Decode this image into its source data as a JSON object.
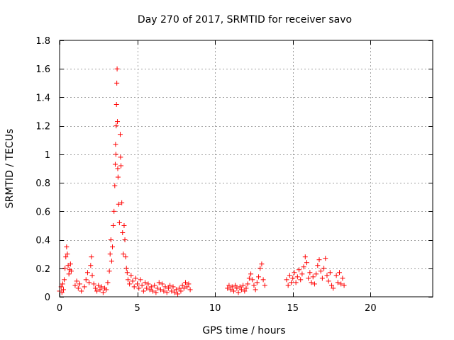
{
  "chart_data": {
    "type": "scatter",
    "title": "Day 270 of 2017, SRMTID for receiver savo",
    "xlabel": "GPS time / hours",
    "ylabel": "SRMTID / TECUs",
    "xlim": [
      0,
      24
    ],
    "ylim": [
      0,
      1.8
    ],
    "xticks": [
      0,
      5,
      10,
      15,
      20
    ],
    "yticks": [
      0,
      0.2,
      0.4,
      0.6,
      0.8,
      1,
      1.2,
      1.4,
      1.6,
      1.8
    ],
    "xtick_labels": [
      "0",
      "5",
      "10",
      "15",
      "20"
    ],
    "ytick_labels": [
      "0",
      "0.2",
      "0.4",
      "0.6",
      "0.8",
      "1",
      "1.2",
      "1.4",
      "1.6",
      "1.8"
    ],
    "grid": true,
    "marker": "plus",
    "color": "#ff0000",
    "series": [
      {
        "name": "SRMTID",
        "points": [
          [
            0.0,
            0.04
          ],
          [
            0.1,
            0.07
          ],
          [
            0.15,
            0.03
          ],
          [
            0.2,
            0.09
          ],
          [
            0.25,
            0.05
          ],
          [
            0.3,
            0.12
          ],
          [
            0.35,
            0.2
          ],
          [
            0.4,
            0.28
          ],
          [
            0.45,
            0.35
          ],
          [
            0.5,
            0.3
          ],
          [
            0.55,
            0.22
          ],
          [
            0.6,
            0.16
          ],
          [
            0.65,
            0.19
          ],
          [
            0.7,
            0.23
          ],
          [
            0.75,
            0.18
          ],
          [
            1.0,
            0.08
          ],
          [
            1.1,
            0.11
          ],
          [
            1.2,
            0.06
          ],
          [
            1.3,
            0.09
          ],
          [
            1.4,
            0.04
          ],
          [
            1.6,
            0.07
          ],
          [
            1.7,
            0.12
          ],
          [
            1.8,
            0.17
          ],
          [
            1.9,
            0.1
          ],
          [
            2.0,
            0.22
          ],
          [
            2.05,
            0.28
          ],
          [
            2.1,
            0.15
          ],
          [
            2.2,
            0.09
          ],
          [
            2.3,
            0.06
          ],
          [
            2.4,
            0.04
          ],
          [
            2.5,
            0.08
          ],
          [
            2.6,
            0.05
          ],
          [
            2.7,
            0.07
          ],
          [
            2.8,
            0.03
          ],
          [
            2.9,
            0.06
          ],
          [
            3.0,
            0.05
          ],
          [
            3.1,
            0.1
          ],
          [
            3.2,
            0.18
          ],
          [
            3.25,
            0.3
          ],
          [
            3.3,
            0.4
          ],
          [
            3.35,
            0.25
          ],
          [
            3.4,
            0.35
          ],
          [
            3.45,
            0.5
          ],
          [
            3.5,
            0.6
          ],
          [
            3.55,
            0.78
          ],
          [
            3.58,
            0.93
          ],
          [
            3.6,
            1.07
          ],
          [
            3.62,
            1.0
          ],
          [
            3.64,
            1.2
          ],
          [
            3.66,
            1.35
          ],
          [
            3.68,
            1.5
          ],
          [
            3.7,
            1.6
          ],
          [
            3.72,
            1.23
          ],
          [
            3.74,
            0.9
          ],
          [
            3.76,
            0.84
          ],
          [
            3.8,
            0.65
          ],
          [
            3.85,
            0.52
          ],
          [
            3.9,
            1.14
          ],
          [
            3.92,
            0.98
          ],
          [
            3.95,
            0.92
          ],
          [
            4.0,
            0.66
          ],
          [
            4.05,
            0.45
          ],
          [
            4.1,
            0.3
          ],
          [
            4.15,
            0.5
          ],
          [
            4.2,
            0.4
          ],
          [
            4.25,
            0.28
          ],
          [
            4.3,
            0.2
          ],
          [
            4.35,
            0.17
          ],
          [
            4.4,
            0.12
          ],
          [
            4.5,
            0.09
          ],
          [
            4.6,
            0.15
          ],
          [
            4.7,
            0.11
          ],
          [
            4.8,
            0.07
          ],
          [
            4.9,
            0.13
          ],
          [
            5.0,
            0.09
          ],
          [
            5.1,
            0.06
          ],
          [
            5.2,
            0.12
          ],
          [
            5.3,
            0.08
          ],
          [
            5.4,
            0.04
          ],
          [
            5.5,
            0.1
          ],
          [
            5.6,
            0.06
          ],
          [
            5.7,
            0.09
          ],
          [
            5.8,
            0.05
          ],
          [
            5.9,
            0.07
          ],
          [
            6.0,
            0.04
          ],
          [
            6.1,
            0.08
          ],
          [
            6.2,
            0.03
          ],
          [
            6.3,
            0.06
          ],
          [
            6.4,
            0.1
          ],
          [
            6.5,
            0.05
          ],
          [
            6.6,
            0.09
          ],
          [
            6.7,
            0.04
          ],
          [
            6.8,
            0.07
          ],
          [
            6.9,
            0.03
          ],
          [
            7.0,
            0.06
          ],
          [
            7.1,
            0.08
          ],
          [
            7.2,
            0.04
          ],
          [
            7.3,
            0.07
          ],
          [
            7.4,
            0.03
          ],
          [
            7.5,
            0.05
          ],
          [
            7.6,
            0.02
          ],
          [
            7.7,
            0.06
          ],
          [
            7.8,
            0.04
          ],
          [
            7.9,
            0.08
          ],
          [
            8.0,
            0.06
          ],
          [
            8.1,
            0.1
          ],
          [
            8.2,
            0.07
          ],
          [
            8.3,
            0.09
          ],
          [
            8.4,
            0.05
          ],
          [
            10.8,
            0.06
          ],
          [
            10.9,
            0.08
          ],
          [
            11.0,
            0.05
          ],
          [
            11.1,
            0.07
          ],
          [
            11.2,
            0.04
          ],
          [
            11.3,
            0.08
          ],
          [
            11.4,
            0.06
          ],
          [
            11.5,
            0.03
          ],
          [
            11.6,
            0.07
          ],
          [
            11.7,
            0.05
          ],
          [
            11.8,
            0.08
          ],
          [
            11.9,
            0.04
          ],
          [
            12.0,
            0.06
          ],
          [
            12.1,
            0.09
          ],
          [
            12.2,
            0.13
          ],
          [
            12.3,
            0.16
          ],
          [
            12.4,
            0.12
          ],
          [
            12.5,
            0.08
          ],
          [
            12.6,
            0.05
          ],
          [
            12.7,
            0.1
          ],
          [
            12.8,
            0.14
          ],
          [
            12.9,
            0.2
          ],
          [
            13.0,
            0.23
          ],
          [
            13.1,
            0.12
          ],
          [
            13.2,
            0.08
          ],
          [
            14.6,
            0.12
          ],
          [
            14.7,
            0.08
          ],
          [
            14.8,
            0.15
          ],
          [
            14.9,
            0.1
          ],
          [
            15.0,
            0.13
          ],
          [
            15.1,
            0.17
          ],
          [
            15.2,
            0.1
          ],
          [
            15.3,
            0.14
          ],
          [
            15.4,
            0.19
          ],
          [
            15.5,
            0.12
          ],
          [
            15.6,
            0.16
          ],
          [
            15.7,
            0.21
          ],
          [
            15.8,
            0.28
          ],
          [
            15.9,
            0.24
          ],
          [
            16.0,
            0.13
          ],
          [
            16.1,
            0.17
          ],
          [
            16.2,
            0.1
          ],
          [
            16.3,
            0.14
          ],
          [
            16.4,
            0.09
          ],
          [
            16.5,
            0.16
          ],
          [
            16.6,
            0.22
          ],
          [
            16.7,
            0.26
          ],
          [
            16.8,
            0.18
          ],
          [
            16.9,
            0.13
          ],
          [
            17.0,
            0.2
          ],
          [
            17.1,
            0.27
          ],
          [
            17.2,
            0.15
          ],
          [
            17.3,
            0.11
          ],
          [
            17.4,
            0.17
          ],
          [
            17.5,
            0.08
          ],
          [
            17.6,
            0.06
          ],
          [
            17.8,
            0.15
          ],
          [
            17.9,
            0.1
          ],
          [
            18.0,
            0.17
          ],
          [
            18.1,
            0.09
          ],
          [
            18.2,
            0.13
          ],
          [
            18.3,
            0.08
          ]
        ]
      }
    ]
  }
}
